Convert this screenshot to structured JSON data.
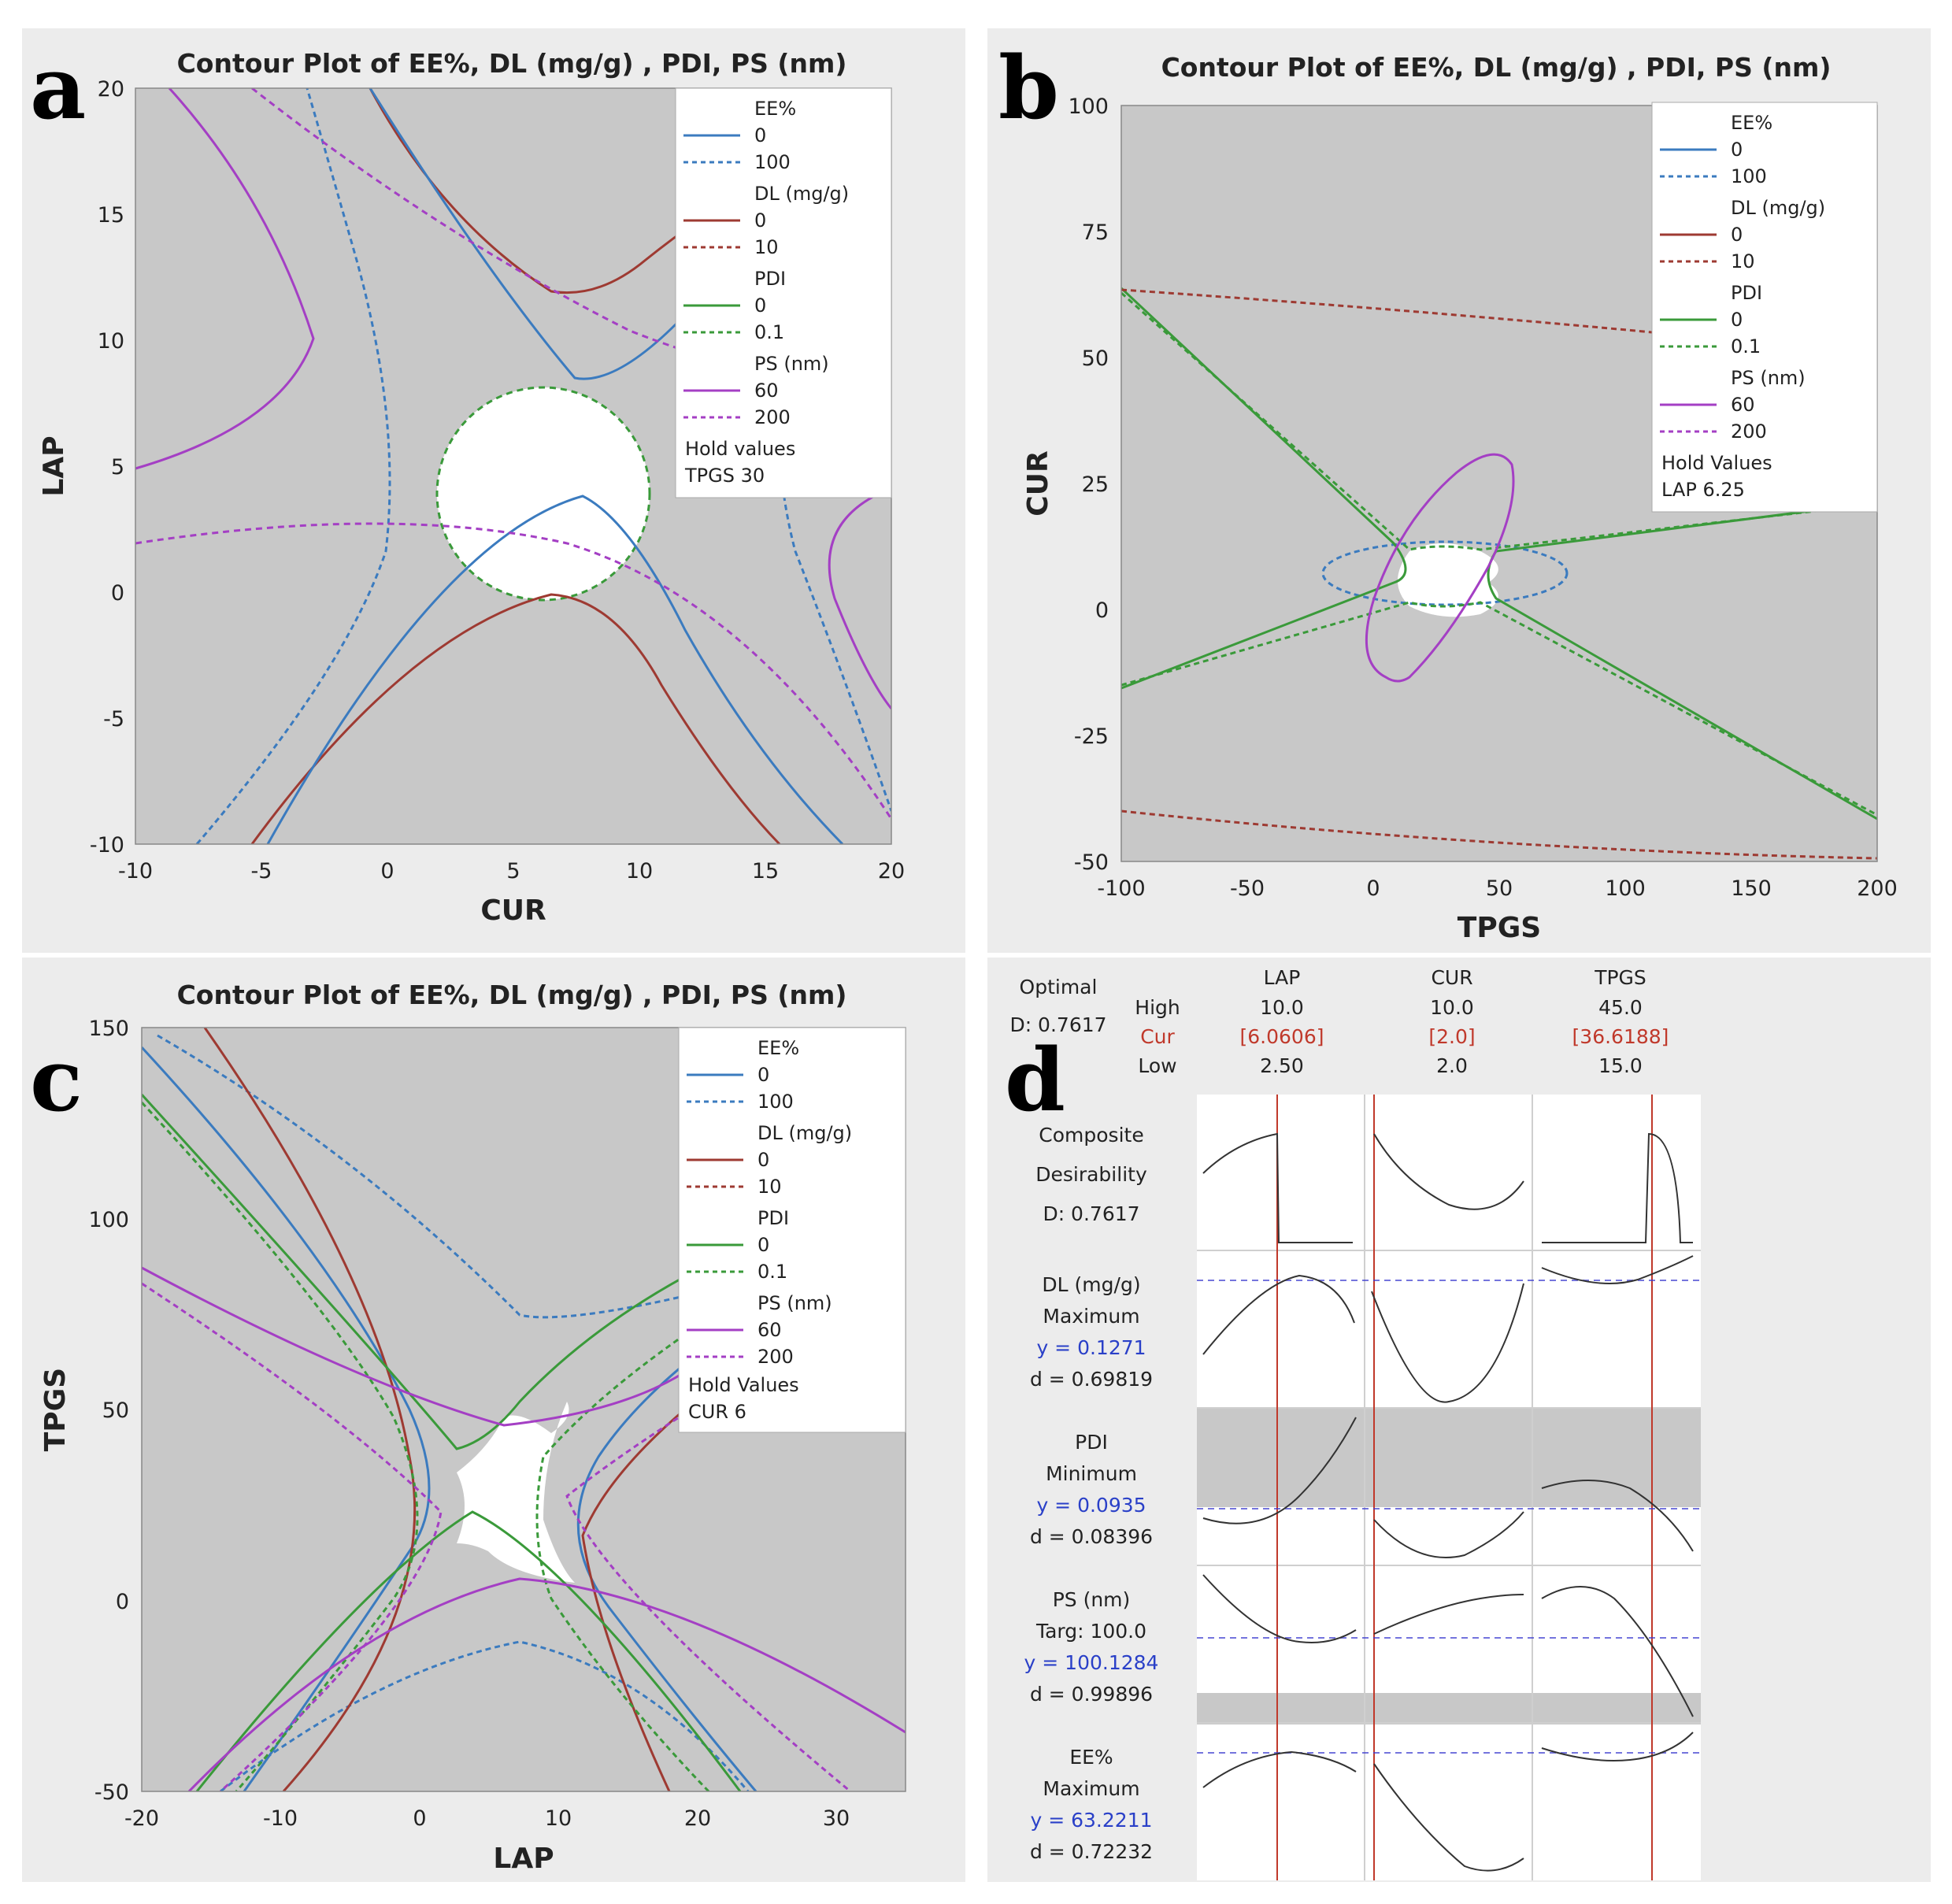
{
  "colors": {
    "ee": "#3b7bbf",
    "dl": "#9e3a32",
    "pdi": "#3a9a3a",
    "ps": "#a43fc4",
    "gray": "#c8c8c8",
    "red": "#c0392b",
    "blue": "#2a40c8"
  },
  "panels": [
    {
      "letter": "a",
      "title": "Contour Plot of EE%, DL  (mg/g)  , PDI, PS  (nm)",
      "xlabel": "CUR",
      "ylabel": "LAP",
      "xticks": [
        "-10",
        "-5",
        "0",
        "5",
        "10",
        "15",
        "20"
      ],
      "yticks": [
        "-10",
        "-5",
        "0",
        "5",
        "10",
        "15",
        "20"
      ],
      "legend": {
        "items": [
          {
            "head": "EE%",
            "solid": "0",
            "dashed": "100"
          },
          {
            "head": "DL  (mg/g)",
            "solid": "0",
            "dashed": "10"
          },
          {
            "head": "PDI",
            "solid": "0",
            "dashed": "0.1"
          },
          {
            "head": "PS  (nm)",
            "solid": "60",
            "dashed": "200"
          }
        ],
        "hold_title": "Hold values",
        "hold_value": "TPGS  30"
      }
    },
    {
      "letter": "b",
      "title": "Contour Plot of EE%, DL  (mg/g)  , PDI, PS  (nm)",
      "xlabel": "TPGS",
      "ylabel": "CUR",
      "xticks": [
        "-100",
        "-50",
        "0",
        "50",
        "100",
        "150",
        "200"
      ],
      "yticks": [
        "-50",
        "-25",
        "0",
        "25",
        "50",
        "75",
        "100"
      ],
      "legend": {
        "items": [
          {
            "head": "EE%",
            "solid": "0",
            "dashed": "100"
          },
          {
            "head": "DL  (mg/g)",
            "solid": "0",
            "dashed": "10"
          },
          {
            "head": "PDI",
            "solid": "0",
            "dashed": "0.1"
          },
          {
            "head": "PS  (nm)",
            "solid": "60",
            "dashed": "200"
          }
        ],
        "hold_title": "Hold Values",
        "hold_value": "LAP  6.25"
      }
    },
    {
      "letter": "c",
      "title": "Contour Plot of EE%, DL  (mg/g)  , PDI, PS  (nm)",
      "xlabel": "LAP",
      "ylabel": "TPGS",
      "xticks": [
        "-20",
        "-10",
        "0",
        "10",
        "20",
        "30"
      ],
      "yticks": [
        "-50",
        "0",
        "50",
        "100",
        "150"
      ],
      "legend": {
        "items": [
          {
            "head": "EE%",
            "solid": "0",
            "dashed": "100"
          },
          {
            "head": "DL  (mg/g)",
            "solid": "0",
            "dashed": "10"
          },
          {
            "head": "PDI",
            "solid": "0",
            "dashed": "0.1"
          },
          {
            "head": "PS  (nm)",
            "solid": "60",
            "dashed": "200"
          }
        ],
        "hold_title": "Hold Values",
        "hold_value": "CUR  6"
      }
    }
  ],
  "optimizer": {
    "letter": "d",
    "optimal": "Optimal",
    "d_label": "D: 0.7617",
    "row_high": "High",
    "row_cur": "Cur",
    "row_low": "Low",
    "factors": [
      {
        "name": "LAP",
        "high": "10.0",
        "cur": "[6.0606]",
        "low": "2.50"
      },
      {
        "name": "CUR",
        "high": "10.0",
        "cur": "[2.0]",
        "low": "2.0"
      },
      {
        "name": "TPGS",
        "high": "45.0",
        "cur": "[36.6188]",
        "low": "15.0"
      }
    ],
    "responses": [
      {
        "l1": "Composite",
        "l2": "Desirability",
        "l3": "D: 0.7617",
        "l4": ""
      },
      {
        "l1": "DL  (mg/g)",
        "l2": "Maximum",
        "l3": "y = 0.1271",
        "l4": "d = 0.69819"
      },
      {
        "l1": "PDI",
        "l2": "Minimum",
        "l3": "y = 0.0935",
        "l4": "d = 0.08396"
      },
      {
        "l1": "PS  (nm)",
        "l2": "Targ: 100.0",
        "l3": "y = 100.1284",
        "l4": "d = 0.99896"
      },
      {
        "l1": "EE%",
        "l2": "Maximum",
        "l3": "y = 63.2211",
        "l4": "d = 0.72232"
      }
    ]
  },
  "chart_data": [
    {
      "type": "contour",
      "panel": "a",
      "title": "Contour Plot of EE%, DL (mg/g) , PDI, PS (nm)",
      "xlabel": "CUR",
      "ylabel": "LAP",
      "xlim": [
        -10,
        20
      ],
      "ylim": [
        -10,
        20
      ],
      "hold": "TPGS 30"
    },
    {
      "type": "contour",
      "panel": "b",
      "title": "Contour Plot of EE%, DL (mg/g) , PDI, PS (nm)",
      "xlabel": "TPGS",
      "ylabel": "CUR",
      "xlim": [
        -100,
        200
      ],
      "ylim": [
        -50,
        100
      ],
      "hold": "LAP 6.25"
    },
    {
      "type": "contour",
      "panel": "c",
      "title": "Contour Plot of EE%, DL (mg/g) , PDI, PS (nm)",
      "xlabel": "LAP",
      "ylabel": "TPGS",
      "xlim": [
        -20,
        35
      ],
      "ylim": [
        -50,
        150
      ],
      "hold": "CUR 6"
    },
    {
      "type": "optimizer",
      "panel": "d",
      "composite_D": 0.7617,
      "factors": [
        {
          "name": "LAP",
          "high": 10.0,
          "cur": 6.0606,
          "low": 2.5
        },
        {
          "name": "CUR",
          "high": 10.0,
          "cur": 2.0,
          "low": 2.0
        },
        {
          "name": "TPGS",
          "high": 45.0,
          "cur": 36.6188,
          "low": 15.0
        }
      ],
      "responses": [
        {
          "name": "DL (mg/g)",
          "goal": "Maximum",
          "y": 0.1271,
          "d": 0.69819
        },
        {
          "name": "PDI",
          "goal": "Minimum",
          "y": 0.0935,
          "d": 0.08396
        },
        {
          "name": "PS (nm)",
          "goal": "Target 100.0",
          "y": 100.1284,
          "d": 0.99896
        },
        {
          "name": "EE%",
          "goal": "Maximum",
          "y": 63.2211,
          "d": 0.72232
        }
      ]
    }
  ]
}
